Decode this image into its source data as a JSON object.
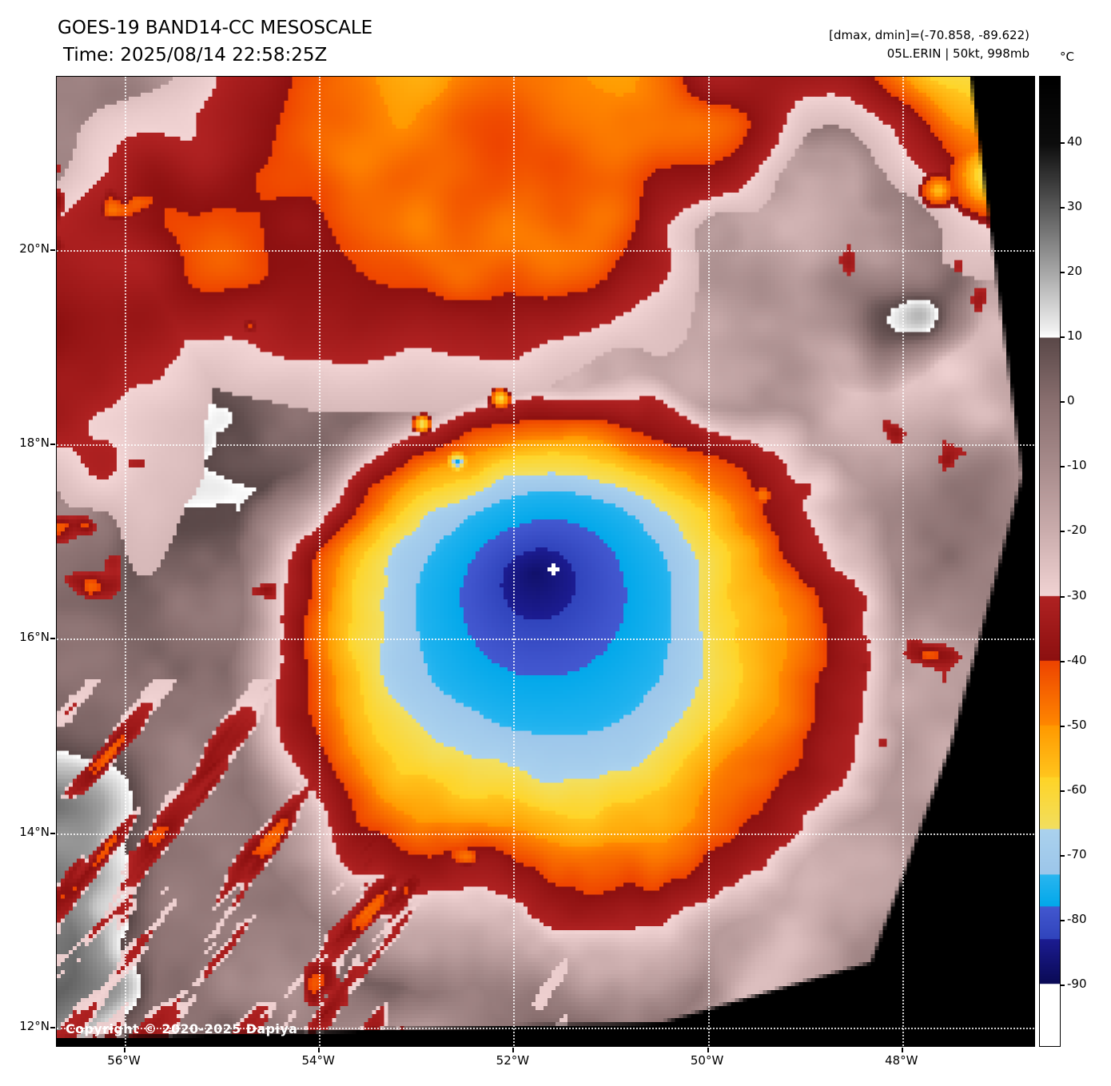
{
  "header": {
    "title": "GOES-19 BAND14-CC MESOSCALE",
    "time": "Time: 2025/08/14 22:58:25Z",
    "range_info": "[dmax, dmin]=(-70.858, -89.622)",
    "storm_info": "05L.ERIN | 50kt, 998mb",
    "dmax": -70.858,
    "dmin": -89.622
  },
  "map": {
    "copyright": "Copyright © 2020-2025 Dapiya",
    "lat_ticks": [
      {
        "label": "20°N",
        "deg": 20
      },
      {
        "label": "18°N",
        "deg": 18
      },
      {
        "label": "16°N",
        "deg": 16
      },
      {
        "label": "14°N",
        "deg": 14
      },
      {
        "label": "12°N",
        "deg": 12
      }
    ],
    "lon_ticks": [
      {
        "label": "56°W",
        "deg": 56
      },
      {
        "label": "54°W",
        "deg": 54
      },
      {
        "label": "52°W",
        "deg": 52
      },
      {
        "label": "50°W",
        "deg": 50
      },
      {
        "label": "48°W",
        "deg": 48
      }
    ]
  },
  "colorbar": {
    "unit_label": "°C",
    "ticks": [
      {
        "label": "40",
        "t": 40
      },
      {
        "label": "30",
        "t": 30
      },
      {
        "label": "20",
        "t": 20
      },
      {
        "label": "10",
        "t": 10
      },
      {
        "label": "0",
        "t": 0
      },
      {
        "label": "-10",
        "t": -10
      },
      {
        "label": "-20",
        "t": -20
      },
      {
        "label": "-30",
        "t": -30
      },
      {
        "label": "-40",
        "t": -40
      },
      {
        "label": "-50",
        "t": -50
      },
      {
        "label": "-60",
        "t": -60
      },
      {
        "label": "-70",
        "t": -70
      },
      {
        "label": "-80",
        "t": -80
      },
      {
        "label": "-90",
        "t": -90
      }
    ],
    "stops": [
      [
        50,
        "#000000"
      ],
      [
        40,
        "#0d0d0d"
      ],
      [
        30,
        "#5a5a5a"
      ],
      [
        20,
        "#a8a8a8"
      ],
      [
        11,
        "#f2f2f2"
      ],
      [
        10,
        "#ffffff"
      ],
      [
        10,
        "#5a4848"
      ],
      [
        0,
        "#8a7070"
      ],
      [
        -10,
        "#a88c8c"
      ],
      [
        -20,
        "#cbadad"
      ],
      [
        -30,
        "#f2d4d4"
      ],
      [
        -30,
        "#b02222"
      ],
      [
        -40,
        "#8c1010"
      ],
      [
        -40,
        "#ee4400"
      ],
      [
        -50,
        "#ff8800"
      ],
      [
        -50,
        "#ff9900"
      ],
      [
        -58,
        "#ffc61e"
      ],
      [
        -58,
        "#ffd426"
      ],
      [
        -66,
        "#f2df60"
      ],
      [
        -66,
        "#abd2ee"
      ],
      [
        -73,
        "#9cc6ea"
      ],
      [
        -73,
        "#2ab6f0"
      ],
      [
        -78,
        "#02a8ea"
      ],
      [
        -78,
        "#4358d0"
      ],
      [
        -83,
        "#3044bc"
      ],
      [
        -83,
        "#1c1c92"
      ],
      [
        -90,
        "#0a0a55"
      ],
      [
        -90,
        "#ffffff"
      ],
      [
        -110,
        "#ffffff"
      ]
    ]
  }
}
